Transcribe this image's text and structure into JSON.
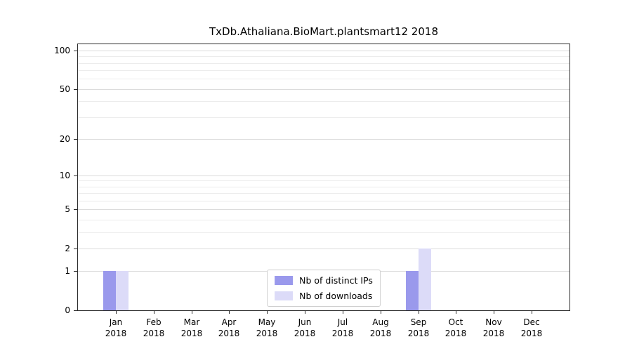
{
  "chart_data": {
    "type": "bar",
    "title": "TxDb.Athaliana.BioMart.plantsmart12 2018",
    "categories": [
      "Jan",
      "Feb",
      "Mar",
      "Apr",
      "May",
      "Jun",
      "Jul",
      "Aug",
      "Sep",
      "Oct",
      "Nov",
      "Dec"
    ],
    "category_year": "2018",
    "series": [
      {
        "name": "Nb of distinct IPs",
        "color": "#9a99ec",
        "values": [
          1,
          0,
          0,
          0,
          0,
          0,
          0,
          0,
          1,
          0,
          0,
          0
        ]
      },
      {
        "name": "Nb of downloads",
        "color": "#dcdbf8",
        "values": [
          1,
          0,
          0,
          0,
          0,
          0,
          0,
          0,
          2,
          0,
          0,
          0
        ]
      }
    ],
    "y_ticks": [
      0,
      1,
      2,
      5,
      10,
      20,
      50,
      100
    ],
    "y_scale": "log1p",
    "ylim": [
      0,
      110
    ],
    "grid": "horizontal",
    "grid_color_major": "#dcdcdc",
    "grid_color_minor": "#ececec",
    "legend_position": "bottom-center-inside"
  }
}
